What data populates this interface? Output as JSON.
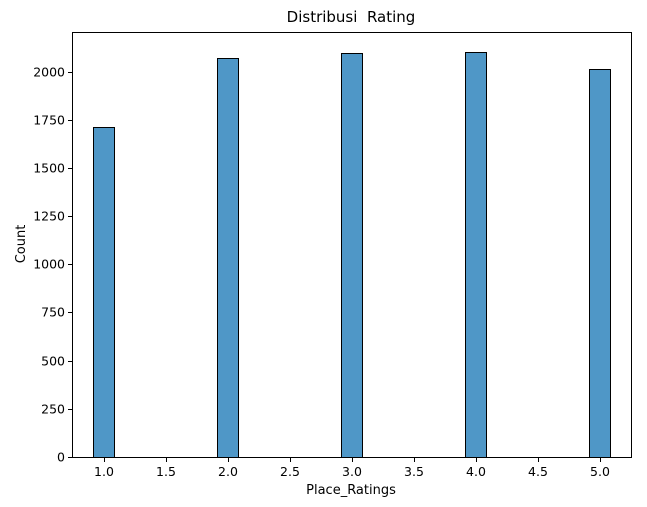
{
  "chart_data": {
    "type": "bar",
    "title": "Distribusi  Rating",
    "xlabel": "Place_Ratings",
    "ylabel": "Count",
    "categories": [
      1.0,
      2.0,
      3.0,
      4.0,
      5.0
    ],
    "values": [
      1710,
      2070,
      2095,
      2100,
      2015
    ],
    "x_ticks": [
      1.0,
      1.5,
      2.0,
      2.5,
      3.0,
      3.5,
      4.0,
      4.5,
      5.0
    ],
    "y_ticks": [
      0,
      250,
      500,
      750,
      1000,
      1250,
      1500,
      1750,
      2000
    ],
    "xlim": [
      0.75,
      5.25
    ],
    "ylim": [
      0,
      2200
    ],
    "bar_width": 0.18,
    "bar_color": "#4f97c7",
    "bar_edge_color": "#000000",
    "grid": false,
    "legend": "none"
  }
}
